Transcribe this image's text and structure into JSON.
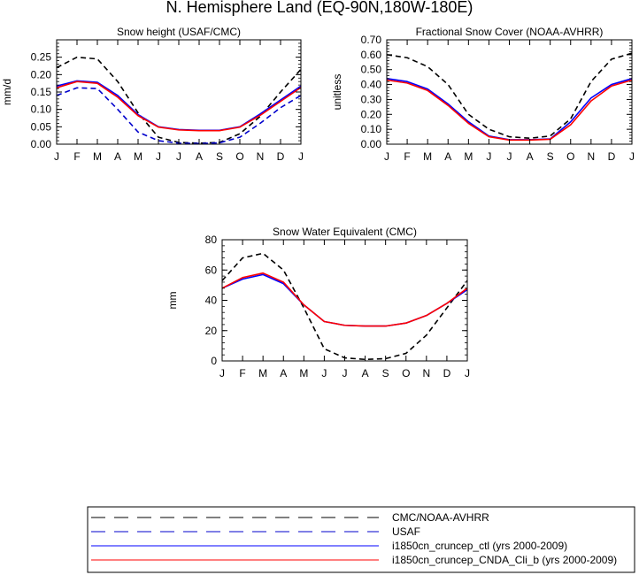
{
  "page_title": "N. Hemisphere Land (EQ-90N,180W-180E)",
  "legend": {
    "entries": [
      {
        "label": "CMC/NOAA-AVHRR",
        "color": "#000000",
        "dash": true
      },
      {
        "label": "USAF",
        "color": "#0000cc",
        "dash": true
      },
      {
        "label": "i1850cn_cruncep_ctl (yrs 2000-2009)",
        "color": "#0000ff",
        "dash": false
      },
      {
        "label": "i1850cn_cruncep_CNDA_Cli_b (yrs 2000-2009)",
        "color": "#ff0000",
        "dash": false
      }
    ]
  },
  "chart_data": [
    {
      "type": "line",
      "title": "Snow height (USAF/CMC)",
      "xlabel": "",
      "ylabel": "mm/d",
      "categories": [
        "J",
        "F",
        "M",
        "A",
        "M",
        "J",
        "J",
        "A",
        "S",
        "O",
        "N",
        "D",
        "J"
      ],
      "ylim": [
        0,
        0.3
      ],
      "yticks": [
        0,
        0.05,
        0.1,
        0.15,
        0.2,
        0.25
      ],
      "ytick_labels": [
        "0.00",
        "0.05",
        "0.10",
        "0.15",
        "0.20",
        "0.25"
      ],
      "grid": false,
      "series": [
        {
          "name": "CMC/NOAA-AVHRR",
          "color": "#000000",
          "dash": true,
          "values": [
            0.22,
            0.25,
            0.245,
            0.18,
            0.09,
            0.02,
            0.005,
            0.003,
            0.005,
            0.03,
            0.08,
            0.15,
            0.215
          ]
        },
        {
          "name": "USAF",
          "color": "#0000cc",
          "dash": true,
          "values": [
            0.14,
            0.162,
            0.16,
            0.1,
            0.035,
            0.01,
            0.003,
            0.002,
            0.004,
            0.02,
            0.06,
            0.105,
            0.14
          ]
        },
        {
          "name": "i1850cn_cruncep_ctl (yrs 2000-2009)",
          "color": "#0000ff",
          "dash": false,
          "values": [
            0.167,
            0.182,
            0.178,
            0.14,
            0.085,
            0.05,
            0.042,
            0.04,
            0.04,
            0.05,
            0.087,
            0.127,
            0.167
          ]
        },
        {
          "name": "i1850cn_cruncep_CNDA_Cli_b (yrs 2000-2009)",
          "color": "#ff0000",
          "dash": false,
          "values": [
            0.162,
            0.18,
            0.175,
            0.135,
            0.082,
            0.049,
            0.041,
            0.039,
            0.039,
            0.049,
            0.083,
            0.123,
            0.163
          ]
        }
      ]
    },
    {
      "type": "line",
      "title": "Fractional Snow Cover (NOAA-AVHRR)",
      "xlabel": "",
      "ylabel": "unitless",
      "categories": [
        "J",
        "F",
        "M",
        "A",
        "M",
        "J",
        "J",
        "A",
        "S",
        "O",
        "N",
        "D",
        "J"
      ],
      "ylim": [
        0,
        0.7
      ],
      "yticks": [
        0,
        0.1,
        0.2,
        0.3,
        0.4,
        0.5,
        0.6,
        0.7
      ],
      "ytick_labels": [
        "0.00",
        "0.10",
        "0.20",
        "0.30",
        "0.40",
        "0.50",
        "0.60",
        "0.70"
      ],
      "grid": false,
      "series": [
        {
          "name": "CMC/NOAA-AVHRR",
          "color": "#000000",
          "dash": true,
          "values": [
            0.6,
            0.58,
            0.52,
            0.4,
            0.2,
            0.1,
            0.05,
            0.04,
            0.055,
            0.17,
            0.42,
            0.57,
            0.61
          ]
        },
        {
          "name": "i1850cn_cruncep_ctl (yrs 2000-2009)",
          "color": "#0000ff",
          "dash": false,
          "values": [
            0.44,
            0.42,
            0.37,
            0.27,
            0.15,
            0.055,
            0.03,
            0.03,
            0.035,
            0.15,
            0.31,
            0.4,
            0.44
          ]
        },
        {
          "name": "i1850cn_cruncep_CNDA_Cli_b (yrs 2000-2009)",
          "color": "#ff0000",
          "dash": false,
          "values": [
            0.43,
            0.41,
            0.36,
            0.26,
            0.14,
            0.05,
            0.028,
            0.028,
            0.033,
            0.13,
            0.29,
            0.39,
            0.43
          ]
        }
      ]
    },
    {
      "type": "line",
      "title": "Snow Water Equivalent (CMC)",
      "xlabel": "",
      "ylabel": "mm",
      "categories": [
        "J",
        "F",
        "M",
        "A",
        "M",
        "J",
        "J",
        "A",
        "S",
        "O",
        "N",
        "D",
        "J"
      ],
      "ylim": [
        0,
        80
      ],
      "yticks": [
        0,
        20,
        40,
        60,
        80
      ],
      "ytick_labels": [
        "0",
        "20",
        "40",
        "60",
        "80"
      ],
      "grid": false,
      "series": [
        {
          "name": "CMC/NOAA-AVHRR",
          "color": "#000000",
          "dash": true,
          "values": [
            53,
            68,
            71,
            60,
            35,
            8,
            2,
            1,
            1.5,
            5,
            17,
            35,
            53
          ]
        },
        {
          "name": "i1850cn_cruncep_ctl (yrs 2000-2009)",
          "color": "#0000ff",
          "dash": false,
          "values": [
            48,
            54,
            57,
            51,
            37,
            26,
            23.5,
            23,
            23,
            25,
            30,
            38,
            47
          ]
        },
        {
          "name": "i1850cn_cruncep_CNDA_Cli_b (yrs 2000-2009)",
          "color": "#ff0000",
          "dash": false,
          "values": [
            48,
            55,
            58,
            52,
            37,
            26,
            23.5,
            23,
            23,
            25,
            30,
            38,
            48
          ]
        }
      ]
    }
  ]
}
